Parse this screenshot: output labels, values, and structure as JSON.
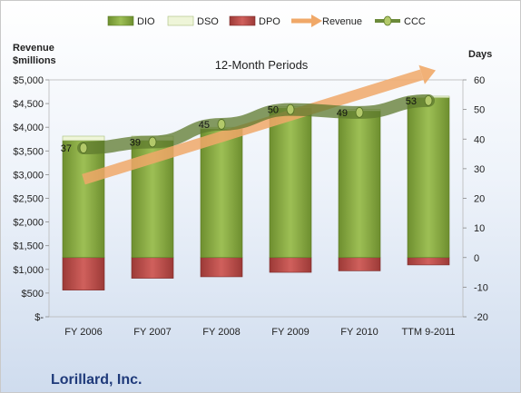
{
  "chart_data": {
    "type": "bar",
    "title": "12-Month Periods",
    "company": "Lorillard, Inc.",
    "categories": [
      "FY 2006",
      "FY 2007",
      "FY 2008",
      "FY 2009",
      "FY 2010",
      "TTM 9-2011"
    ],
    "left_axis": {
      "title_line1": "Revenue",
      "title_line2": "$millions",
      "ylim": [
        0,
        5000
      ],
      "ticks": [
        "$-",
        "$500",
        "$1,000",
        "$1,500",
        "$2,000",
        "$2,500",
        "$3,000",
        "$3,500",
        "$4,000",
        "$4,500",
        "$5,000"
      ]
    },
    "right_axis": {
      "title": "Days",
      "ylim": [
        -20,
        60
      ],
      "ticks": [
        "-20",
        "-10",
        "0",
        "10",
        "20",
        "30",
        "40",
        "50",
        "60"
      ]
    },
    "series": [
      {
        "name": "DIO",
        "axis": "right",
        "kind": "stacked-bar",
        "color": "#8fb14a",
        "values": [
          39.5,
          39.5,
          43.5,
          50.5,
          49.5,
          54.0
        ]
      },
      {
        "name": "DSO",
        "axis": "right",
        "kind": "stacked-bar",
        "color": "#eef5d8",
        "values": [
          1.5,
          1.5,
          0.5,
          0.5,
          0.5,
          0.5
        ]
      },
      {
        "name": "DPO",
        "axis": "right",
        "kind": "negative-bar",
        "color": "#c0504d",
        "values": [
          -11,
          -7,
          -6.5,
          -5,
          -4.5,
          -2.5
        ]
      },
      {
        "name": "Revenue",
        "axis": "left",
        "kind": "arrow",
        "color": "#f0a868",
        "values": [
          2900,
          3250,
          3500,
          3850,
          4500,
          5200
        ]
      },
      {
        "name": "CCC",
        "axis": "right",
        "kind": "line",
        "color": "#6b8a3a",
        "values": [
          37,
          39,
          45,
          50,
          49,
          53
        ],
        "labels": [
          "37",
          "39",
          "45",
          "50",
          "49",
          "53"
        ]
      }
    ],
    "legend_position": "top",
    "grid": false
  }
}
